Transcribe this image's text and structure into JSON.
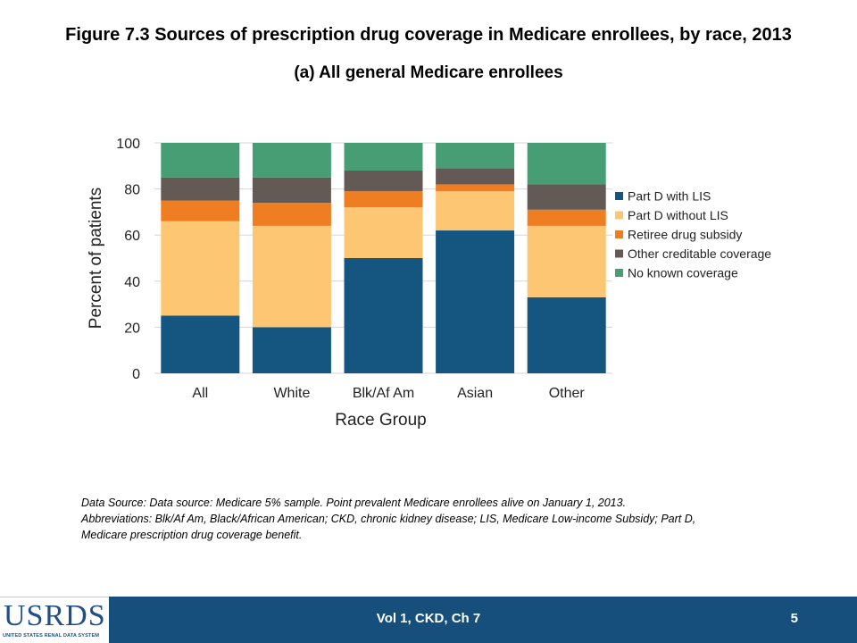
{
  "header": {
    "title": "Figure 7.3 Sources of prescription drug coverage in Medicare enrollees, by race, 2013",
    "subtitle": "(a) All general Medicare enrollees"
  },
  "chart_data": {
    "type": "bar",
    "stacked": true,
    "xlabel": "Race Group",
    "ylabel": "Percent of patients",
    "ylim": [
      0,
      100
    ],
    "yticks": [
      0,
      20,
      40,
      60,
      80,
      100
    ],
    "grid": true,
    "legend_position": "right",
    "categories": [
      "All",
      "White",
      "Blk/Af Am",
      "Asian",
      "Other"
    ],
    "series": [
      {
        "name": "Part D with LIS",
        "color": "#14567f",
        "values": [
          25,
          20,
          50,
          62,
          33
        ]
      },
      {
        "name": "Part D without LIS",
        "color": "#fdc672",
        "values": [
          41,
          44,
          22,
          17,
          31
        ]
      },
      {
        "name": "Retiree drug subsidy",
        "color": "#ef7d22",
        "values": [
          9,
          10,
          7,
          3,
          7
        ]
      },
      {
        "name": "Other creditable coverage",
        "color": "#645a55",
        "values": [
          10,
          11,
          9,
          7,
          11
        ]
      },
      {
        "name": "No known coverage",
        "color": "#479d74",
        "values": [
          15,
          15,
          12,
          11,
          18
        ]
      }
    ]
  },
  "notes": {
    "line1": "Data Source: Data source: Medicare 5% sample. Point prevalent Medicare enrollees alive on January 1, 2013.",
    "line2": "Abbreviations: Blk/Af Am, Black/African American; CKD, chronic kidney disease; LIS, Medicare Low-income Subsidy; Part D,",
    "line3": "Medicare prescription drug coverage benefit."
  },
  "footer": {
    "text": "Vol 1, CKD, Ch 7",
    "page_number": "5",
    "logo_text": "USRDS",
    "logo_subtext": "UNITED STATES RENAL DATA SYSTEM"
  }
}
